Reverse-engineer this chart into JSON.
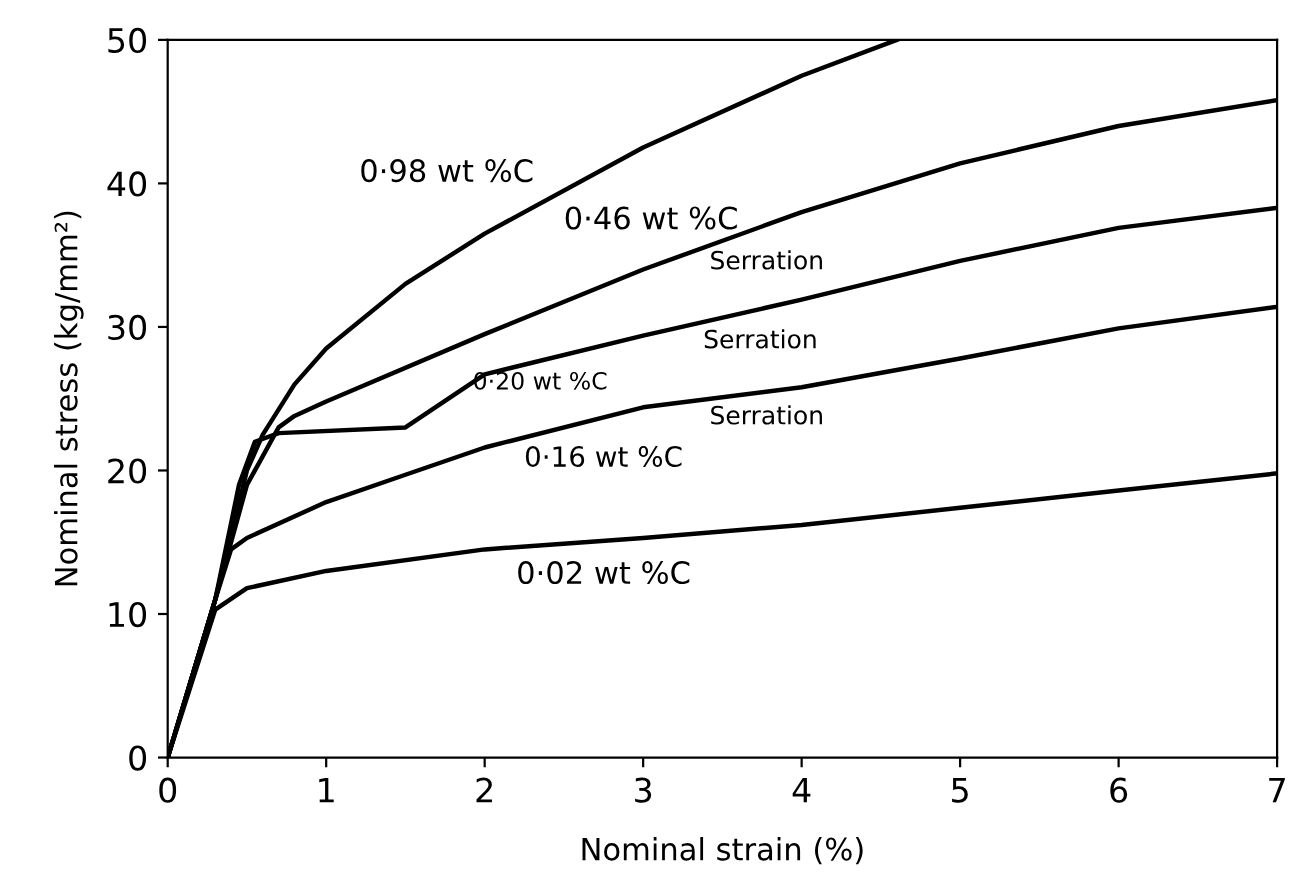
{
  "chart_data": {
    "type": "line",
    "xlabel": "Nominal strain (%)",
    "ylabel": "Nominal stress (kg/mm²)",
    "xlim": [
      0,
      7
    ],
    "ylim": [
      0,
      50
    ],
    "xticks": [
      0,
      1,
      2,
      3,
      4,
      5,
      6,
      7
    ],
    "yticks": [
      0,
      10,
      20,
      30,
      40,
      50
    ],
    "grid": false,
    "legend": false,
    "marker": "none",
    "line_style": "solid",
    "series": [
      {
        "name": "0·98 wt %C",
        "color": "#000000",
        "x": [
          0,
          0.3,
          0.5,
          0.6,
          0.8,
          1,
          1.5,
          2,
          3,
          4,
          4.6
        ],
        "values": [
          0,
          11,
          20,
          22.5,
          26,
          28.5,
          33,
          36.5,
          42.5,
          47.5,
          50
        ]
      },
      {
        "name": "0·46 wt %C",
        "color": "#000000",
        "x": [
          0,
          0.3,
          0.5,
          0.7,
          0.8,
          1,
          2,
          3,
          4,
          5,
          6,
          7
        ],
        "values": [
          0,
          11,
          19,
          23,
          23.8,
          24.8,
          29.5,
          34,
          38,
          41.4,
          44,
          45.8
        ]
      },
      {
        "name": "0·20 wt %C",
        "color": "#000000",
        "x": [
          0,
          0.3,
          0.45,
          0.55,
          0.7,
          1.5,
          2,
          3,
          4,
          5,
          6,
          7
        ],
        "values": [
          0,
          11,
          19,
          22,
          22.6,
          23,
          26.7,
          29.4,
          31.9,
          34.6,
          36.9,
          38.3
        ]
      },
      {
        "name": "0·16 wt %C",
        "color": "#000000",
        "x": [
          0,
          0.3,
          0.4,
          0.5,
          1,
          1.5,
          2,
          3,
          4,
          5,
          6,
          7
        ],
        "values": [
          0,
          11,
          14.5,
          15.3,
          17.8,
          19.7,
          21.6,
          24.4,
          25.8,
          27.8,
          29.9,
          31.4
        ]
      },
      {
        "name": "0·02 wt %C",
        "color": "#000000",
        "x": [
          0,
          0.3,
          0.5,
          1,
          2,
          3,
          4,
          5,
          6,
          7
        ],
        "values": [
          0,
          10.3,
          11.8,
          13,
          14.5,
          15.3,
          16.2,
          17.4,
          18.6,
          19.8
        ]
      }
    ],
    "annotations": [
      "Serration",
      "Serration",
      "Serration"
    ]
  }
}
